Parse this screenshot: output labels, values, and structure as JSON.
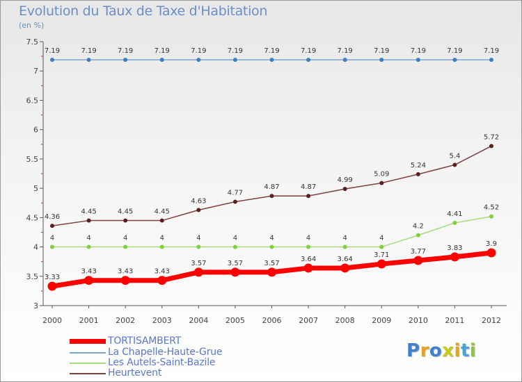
{
  "title": "Evolution du Taux de Taxe d'Habitation",
  "unit_label": "(en %)",
  "logo": {
    "text": "Proxiti",
    "colors": [
      "#3f7fcf",
      "#e6a31c",
      "#3f7fcf",
      "#c9c91a",
      "#e6a31c",
      "#4aa3d8",
      "#8cc63f"
    ]
  },
  "chart_data": {
    "type": "line",
    "title": "Evolution du Taux de Taxe d'Habitation",
    "ylabel": "(en %)",
    "xlabel": "",
    "x": [
      "2000",
      "2001",
      "2002",
      "2003",
      "2004",
      "2005",
      "2006",
      "2007",
      "2008",
      "2009",
      "2010",
      "2011",
      "2012"
    ],
    "ylim": [
      3,
      7.5
    ],
    "yticks": [
      "3",
      "3.5",
      "4",
      "4.5",
      "5",
      "5.5",
      "6",
      "6.5",
      "7",
      "7.5"
    ],
    "grid": false,
    "legend_position": "bottom-left",
    "series": [
      {
        "name": "TORTISAMBERT",
        "color": "#ff0000",
        "marker_color": "#ff0000",
        "values": [
          3.33,
          3.43,
          3.43,
          3.43,
          3.57,
          3.57,
          3.57,
          3.64,
          3.64,
          3.71,
          3.77,
          3.83,
          3.9
        ],
        "labels": [
          "3.33",
          "3.43",
          "3.43",
          "3.43",
          "3.57",
          "3.57",
          "3.57",
          "3.64",
          "3.64",
          "3.71",
          "3.77",
          "3.83",
          "3.9"
        ]
      },
      {
        "name": "La Chapelle-Haute-Grue",
        "color": "#7fa6cf",
        "marker_color": "#3f7fbf",
        "values": [
          7.19,
          7.19,
          7.19,
          7.19,
          7.19,
          7.19,
          7.19,
          7.19,
          7.19,
          7.19,
          7.19,
          7.19,
          7.19
        ],
        "labels": [
          "7.19",
          "7.19",
          "7.19",
          "7.19",
          "7.19",
          "7.19",
          "7.19",
          "7.19",
          "7.19",
          "7.19",
          "7.19",
          "7.19",
          "7.19"
        ]
      },
      {
        "name": "Les Autels-Saint-Bazile",
        "color": "#a6dc7a",
        "marker_color": "#7fcf3f",
        "values": [
          4,
          4,
          4,
          4,
          4,
          4,
          4,
          4,
          4,
          4,
          4.2,
          4.41,
          4.52
        ],
        "labels": [
          "4",
          "4",
          "4",
          "4",
          "4",
          "4",
          "4",
          "4",
          "4",
          "4",
          "4.2",
          "4.41",
          "4.52"
        ]
      },
      {
        "name": "Heurtevent",
        "color": "#7f3f3f",
        "marker_color": "#5a1f1f",
        "values": [
          4.36,
          4.45,
          4.45,
          4.45,
          4.63,
          4.77,
          4.87,
          4.87,
          4.99,
          5.09,
          5.24,
          5.4,
          5.72
        ],
        "labels": [
          "4.36",
          "4.45",
          "4.45",
          "4.45",
          "4.63",
          "4.77",
          "4.87",
          "4.87",
          "4.99",
          "5.09",
          "5.24",
          "5.4",
          "5.72"
        ]
      }
    ]
  }
}
